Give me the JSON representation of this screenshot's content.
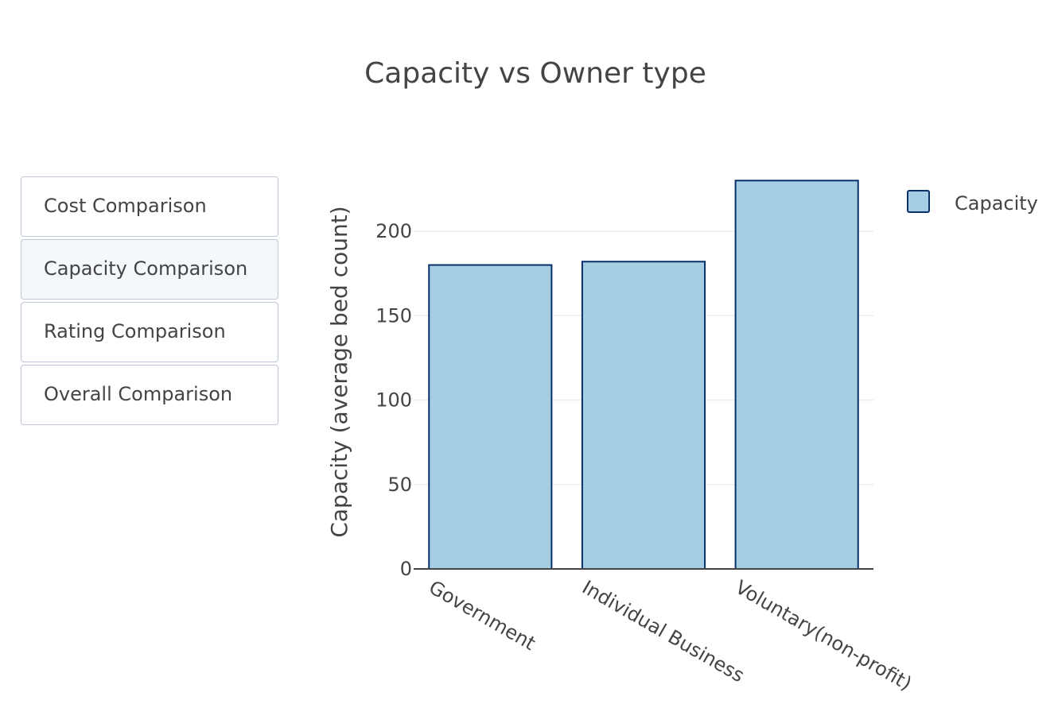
{
  "menu": {
    "buttons": [
      {
        "label": "Cost Comparison",
        "active": false
      },
      {
        "label": "Capacity Comparison",
        "active": true
      },
      {
        "label": "Rating Comparison",
        "active": false
      },
      {
        "label": "Overall Comparison",
        "active": false
      }
    ]
  },
  "colors": {
    "bar_fill": "#a6cee3",
    "bar_stroke": "#08306b",
    "grid": "#eeeeee",
    "axis_line": "#444444",
    "text": "#444444",
    "active_button_bg": "#f4f7fc",
    "button_border": "#bec8d9"
  },
  "chart_data": {
    "type": "bar",
    "title": "Capacity vs Owner type",
    "xlabel": "",
    "ylabel": "Capacity (average bed count)",
    "categories": [
      "Government",
      "Individual Business",
      "Voluntary(non-profit)"
    ],
    "series": [
      {
        "name": "Capacity",
        "values": [
          180,
          182,
          230
        ]
      }
    ],
    "ylim": [
      0,
      240
    ],
    "yticks": [
      0,
      50,
      100,
      150,
      200
    ],
    "grid": true,
    "legend": "top-right"
  }
}
